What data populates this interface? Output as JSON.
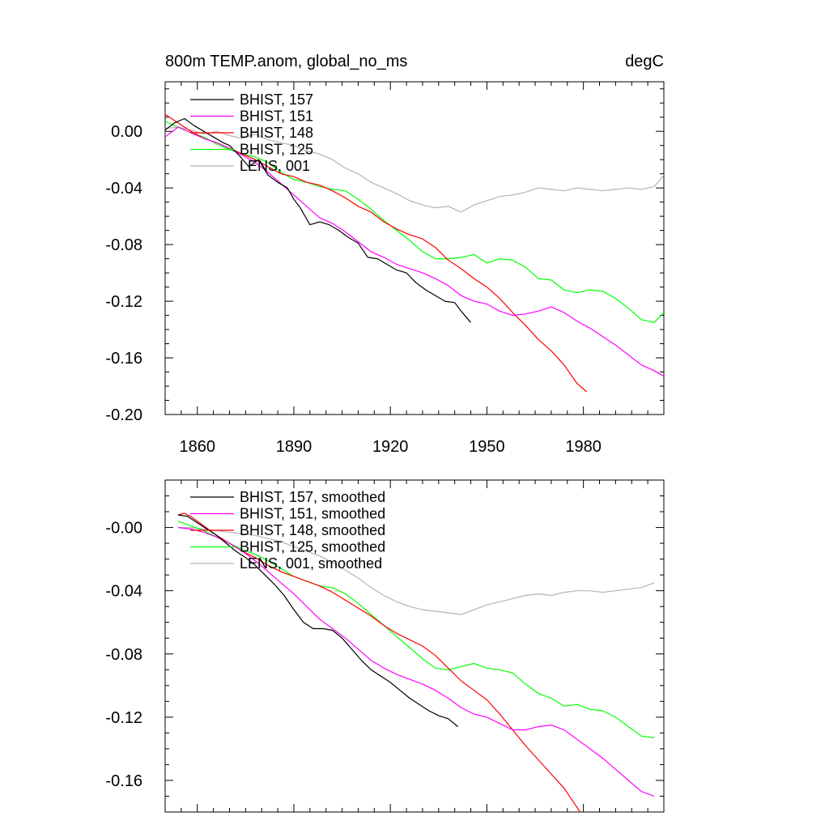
{
  "chart_data": [
    {
      "type": "line",
      "title": "800m TEMP.anom, global_no_ms",
      "units": "degC",
      "xlim": [
        1850,
        2005
      ],
      "ylim": [
        -0.2,
        0.035
      ],
      "x_ticks": [
        1860,
        1890,
        1920,
        1950,
        1980
      ],
      "x_tick_labels": [
        "1860",
        "1890",
        "1920",
        "1950",
        "1980"
      ],
      "y_ticks": [
        0.0,
        -0.04,
        -0.08,
        -0.12,
        -0.16,
        -0.2
      ],
      "y_tick_labels": [
        "0.00",
        "-0.04",
        "-0.08",
        "-0.12",
        "-0.16",
        "-0.20"
      ],
      "legend_position": "top-left",
      "series": [
        {
          "name": "BHIST, 157",
          "color": "#000000",
          "x": [
            1850,
            1853,
            1856,
            1859,
            1862,
            1865,
            1868,
            1870,
            1873,
            1876,
            1879,
            1882,
            1885,
            1888,
            1890,
            1892,
            1895,
            1898,
            1901,
            1904,
            1907,
            1910,
            1913,
            1916,
            1919,
            1922,
            1925,
            1928,
            1931,
            1934,
            1937,
            1940,
            1942,
            1945
          ],
          "y": [
            0.001,
            0.006,
            0.009,
            0.004,
            0.0,
            -0.004,
            -0.008,
            -0.01,
            -0.017,
            -0.025,
            -0.02,
            -0.031,
            -0.036,
            -0.04,
            -0.048,
            -0.054,
            -0.066,
            -0.064,
            -0.066,
            -0.07,
            -0.075,
            -0.079,
            -0.089,
            -0.09,
            -0.094,
            -0.098,
            -0.1,
            -0.107,
            -0.112,
            -0.116,
            -0.12,
            -0.121,
            -0.127,
            -0.135
          ]
        },
        {
          "name": "BHIST, 151",
          "color": "#ff00ff",
          "x": [
            1850,
            1854,
            1858,
            1862,
            1866,
            1870,
            1874,
            1878,
            1882,
            1886,
            1890,
            1894,
            1898,
            1902,
            1906,
            1910,
            1914,
            1918,
            1922,
            1926,
            1930,
            1934,
            1938,
            1942,
            1946,
            1950,
            1954,
            1958,
            1962,
            1966,
            1970,
            1974,
            1978,
            1982,
            1986,
            1990,
            1994,
            1998,
            2002,
            2005
          ],
          "y": [
            -0.004,
            0.003,
            -0.001,
            -0.005,
            -0.008,
            -0.012,
            -0.017,
            -0.022,
            -0.029,
            -0.037,
            -0.045,
            -0.053,
            -0.061,
            -0.065,
            -0.071,
            -0.078,
            -0.085,
            -0.089,
            -0.094,
            -0.097,
            -0.1,
            -0.104,
            -0.109,
            -0.116,
            -0.12,
            -0.122,
            -0.127,
            -0.13,
            -0.129,
            -0.127,
            -0.124,
            -0.128,
            -0.134,
            -0.139,
            -0.145,
            -0.151,
            -0.158,
            -0.165,
            -0.169,
            -0.173
          ]
        },
        {
          "name": "BHIST, 148",
          "color": "#ff0000",
          "x": [
            1850,
            1854,
            1858,
            1862,
            1866,
            1870,
            1874,
            1878,
            1882,
            1886,
            1890,
            1894,
            1898,
            1902,
            1906,
            1910,
            1914,
            1918,
            1922,
            1926,
            1930,
            1934,
            1938,
            1942,
            1946,
            1950,
            1954,
            1958,
            1962,
            1966,
            1970,
            1974,
            1978,
            1981
          ],
          "y": [
            0.012,
            0.006,
            0.0,
            -0.005,
            -0.008,
            -0.012,
            -0.016,
            -0.02,
            -0.025,
            -0.03,
            -0.032,
            -0.036,
            -0.038,
            -0.042,
            -0.047,
            -0.053,
            -0.057,
            -0.064,
            -0.069,
            -0.073,
            -0.076,
            -0.082,
            -0.091,
            -0.097,
            -0.104,
            -0.11,
            -0.118,
            -0.128,
            -0.137,
            -0.147,
            -0.155,
            -0.165,
            -0.178,
            -0.184
          ]
        },
        {
          "name": "BHIST, 125",
          "color": "#00ff00",
          "x": [
            1850,
            1854,
            1858,
            1862,
            1866,
            1870,
            1874,
            1878,
            1882,
            1886,
            1890,
            1894,
            1898,
            1902,
            1906,
            1910,
            1914,
            1918,
            1922,
            1926,
            1930,
            1934,
            1938,
            1942,
            1946,
            1950,
            1954,
            1958,
            1962,
            1966,
            1970,
            1974,
            1978,
            1982,
            1986,
            1990,
            1994,
            1998,
            2002,
            2005
          ],
          "y": [
            0.007,
            0.003,
            -0.001,
            -0.004,
            -0.009,
            -0.013,
            -0.016,
            -0.018,
            -0.022,
            -0.029,
            -0.034,
            -0.036,
            -0.039,
            -0.041,
            -0.042,
            -0.048,
            -0.055,
            -0.063,
            -0.07,
            -0.077,
            -0.085,
            -0.09,
            -0.09,
            -0.089,
            -0.087,
            -0.093,
            -0.09,
            -0.091,
            -0.096,
            -0.104,
            -0.105,
            -0.112,
            -0.114,
            -0.112,
            -0.113,
            -0.118,
            -0.125,
            -0.133,
            -0.135,
            -0.128
          ]
        },
        {
          "name": "LENS, 001",
          "color": "#b4b4b4",
          "x": [
            1850,
            1854,
            1858,
            1862,
            1866,
            1870,
            1874,
            1878,
            1882,
            1886,
            1890,
            1894,
            1898,
            1902,
            1906,
            1910,
            1914,
            1918,
            1922,
            1926,
            1930,
            1934,
            1938,
            1942,
            1946,
            1950,
            1954,
            1958,
            1962,
            1966,
            1970,
            1974,
            1978,
            1982,
            1986,
            1990,
            1994,
            1998,
            2002,
            2005
          ],
          "y": [
            0.002,
            0.003,
            0.001,
            -0.002,
            0.0,
            -0.003,
            -0.005,
            -0.002,
            -0.006,
            -0.008,
            -0.01,
            -0.014,
            -0.016,
            -0.02,
            -0.026,
            -0.03,
            -0.036,
            -0.04,
            -0.044,
            -0.049,
            -0.052,
            -0.054,
            -0.053,
            -0.057,
            -0.052,
            -0.049,
            -0.046,
            -0.045,
            -0.043,
            -0.04,
            -0.041,
            -0.042,
            -0.04,
            -0.041,
            -0.042,
            -0.041,
            -0.04,
            -0.041,
            -0.039,
            -0.031
          ]
        }
      ]
    },
    {
      "type": "line",
      "xlim": [
        1850,
        2005
      ],
      "ylim": [
        -0.18,
        0.03
      ],
      "x_ticks": [
        1860,
        1890,
        1920,
        1950,
        1980
      ],
      "y_ticks": [
        0.0,
        -0.04,
        -0.08,
        -0.12,
        -0.16
      ],
      "y_tick_labels": [
        "-0.00",
        "-0.04",
        "-0.08",
        "-0.12",
        "-0.16"
      ],
      "legend_position": "top-left",
      "series": [
        {
          "name": "BHIST, 157, smoothed",
          "color": "#000000",
          "x": [
            1854,
            1857,
            1860,
            1863,
            1866,
            1869,
            1872,
            1875,
            1878,
            1881,
            1884,
            1887,
            1890,
            1893,
            1896,
            1899,
            1902,
            1905,
            1908,
            1911,
            1914,
            1917,
            1920,
            1923,
            1926,
            1929,
            1932,
            1935,
            1938,
            1941
          ],
          "y": [
            0.008,
            0.007,
            0.003,
            -0.001,
            -0.005,
            -0.01,
            -0.015,
            -0.019,
            -0.024,
            -0.03,
            -0.036,
            -0.043,
            -0.052,
            -0.06,
            -0.064,
            -0.064,
            -0.065,
            -0.07,
            -0.077,
            -0.084,
            -0.09,
            -0.094,
            -0.098,
            -0.103,
            -0.108,
            -0.112,
            -0.116,
            -0.119,
            -0.121,
            -0.126
          ]
        },
        {
          "name": "BHIST, 151, smoothed",
          "color": "#ff00ff",
          "x": [
            1854,
            1858,
            1862,
            1866,
            1870,
            1874,
            1878,
            1882,
            1886,
            1890,
            1894,
            1898,
            1902,
            1906,
            1910,
            1914,
            1918,
            1922,
            1926,
            1930,
            1934,
            1938,
            1942,
            1946,
            1950,
            1954,
            1958,
            1962,
            1966,
            1970,
            1974,
            1978,
            1982,
            1986,
            1990,
            1994,
            1998,
            2002
          ],
          "y": [
            0.0,
            -0.001,
            -0.003,
            -0.006,
            -0.01,
            -0.015,
            -0.021,
            -0.028,
            -0.035,
            -0.042,
            -0.05,
            -0.058,
            -0.064,
            -0.07,
            -0.077,
            -0.084,
            -0.089,
            -0.093,
            -0.096,
            -0.099,
            -0.103,
            -0.108,
            -0.114,
            -0.118,
            -0.12,
            -0.124,
            -0.128,
            -0.128,
            -0.126,
            -0.125,
            -0.128,
            -0.134,
            -0.14,
            -0.146,
            -0.153,
            -0.16,
            -0.167,
            -0.17
          ]
        },
        {
          "name": "BHIST, 148, smoothed",
          "color": "#ff0000",
          "x": [
            1854,
            1856,
            1858,
            1862,
            1866,
            1870,
            1874,
            1878,
            1882,
            1886,
            1890,
            1894,
            1898,
            1902,
            1906,
            1910,
            1914,
            1918,
            1922,
            1926,
            1930,
            1934,
            1938,
            1942,
            1946,
            1950,
            1954,
            1958,
            1962,
            1966,
            1970,
            1974,
            1979
          ],
          "y": [
            0.008,
            0.009,
            0.007,
            0.001,
            -0.005,
            -0.01,
            -0.015,
            -0.019,
            -0.024,
            -0.028,
            -0.031,
            -0.034,
            -0.037,
            -0.041,
            -0.046,
            -0.051,
            -0.056,
            -0.062,
            -0.067,
            -0.071,
            -0.075,
            -0.081,
            -0.089,
            -0.097,
            -0.103,
            -0.109,
            -0.118,
            -0.128,
            -0.138,
            -0.147,
            -0.156,
            -0.165,
            -0.18
          ]
        },
        {
          "name": "BHIST, 125, smoothed",
          "color": "#00ff00",
          "x": [
            1854,
            1858,
            1862,
            1866,
            1870,
            1874,
            1878,
            1882,
            1886,
            1890,
            1894,
            1898,
            1902,
            1906,
            1910,
            1914,
            1918,
            1922,
            1926,
            1930,
            1934,
            1938,
            1942,
            1946,
            1950,
            1954,
            1958,
            1962,
            1966,
            1970,
            1974,
            1978,
            1982,
            1986,
            1990,
            1994,
            1998,
            2002
          ],
          "y": [
            0.004,
            0.001,
            -0.002,
            -0.006,
            -0.01,
            -0.014,
            -0.017,
            -0.021,
            -0.026,
            -0.031,
            -0.034,
            -0.037,
            -0.038,
            -0.042,
            -0.048,
            -0.055,
            -0.062,
            -0.069,
            -0.076,
            -0.083,
            -0.089,
            -0.09,
            -0.088,
            -0.086,
            -0.089,
            -0.09,
            -0.092,
            -0.099,
            -0.105,
            -0.108,
            -0.113,
            -0.112,
            -0.115,
            -0.116,
            -0.12,
            -0.126,
            -0.132,
            -0.133
          ]
        },
        {
          "name": "LENS, 001, smoothed",
          "color": "#b4b4b4",
          "x": [
            1854,
            1858,
            1862,
            1866,
            1870,
            1874,
            1878,
            1882,
            1886,
            1890,
            1894,
            1898,
            1902,
            1906,
            1910,
            1914,
            1918,
            1922,
            1926,
            1930,
            1934,
            1938,
            1942,
            1946,
            1950,
            1954,
            1958,
            1962,
            1966,
            1970,
            1974,
            1978,
            1982,
            1986,
            1990,
            1994,
            1998,
            2002
          ],
          "y": [
            0.0,
            0.0,
            -0.001,
            -0.002,
            -0.003,
            -0.004,
            -0.005,
            -0.007,
            -0.009,
            -0.012,
            -0.015,
            -0.018,
            -0.022,
            -0.027,
            -0.032,
            -0.038,
            -0.043,
            -0.047,
            -0.05,
            -0.052,
            -0.053,
            -0.054,
            -0.055,
            -0.052,
            -0.049,
            -0.047,
            -0.045,
            -0.043,
            -0.042,
            -0.043,
            -0.041,
            -0.04,
            -0.04,
            -0.041,
            -0.04,
            -0.039,
            -0.038,
            -0.035
          ]
        }
      ]
    }
  ]
}
